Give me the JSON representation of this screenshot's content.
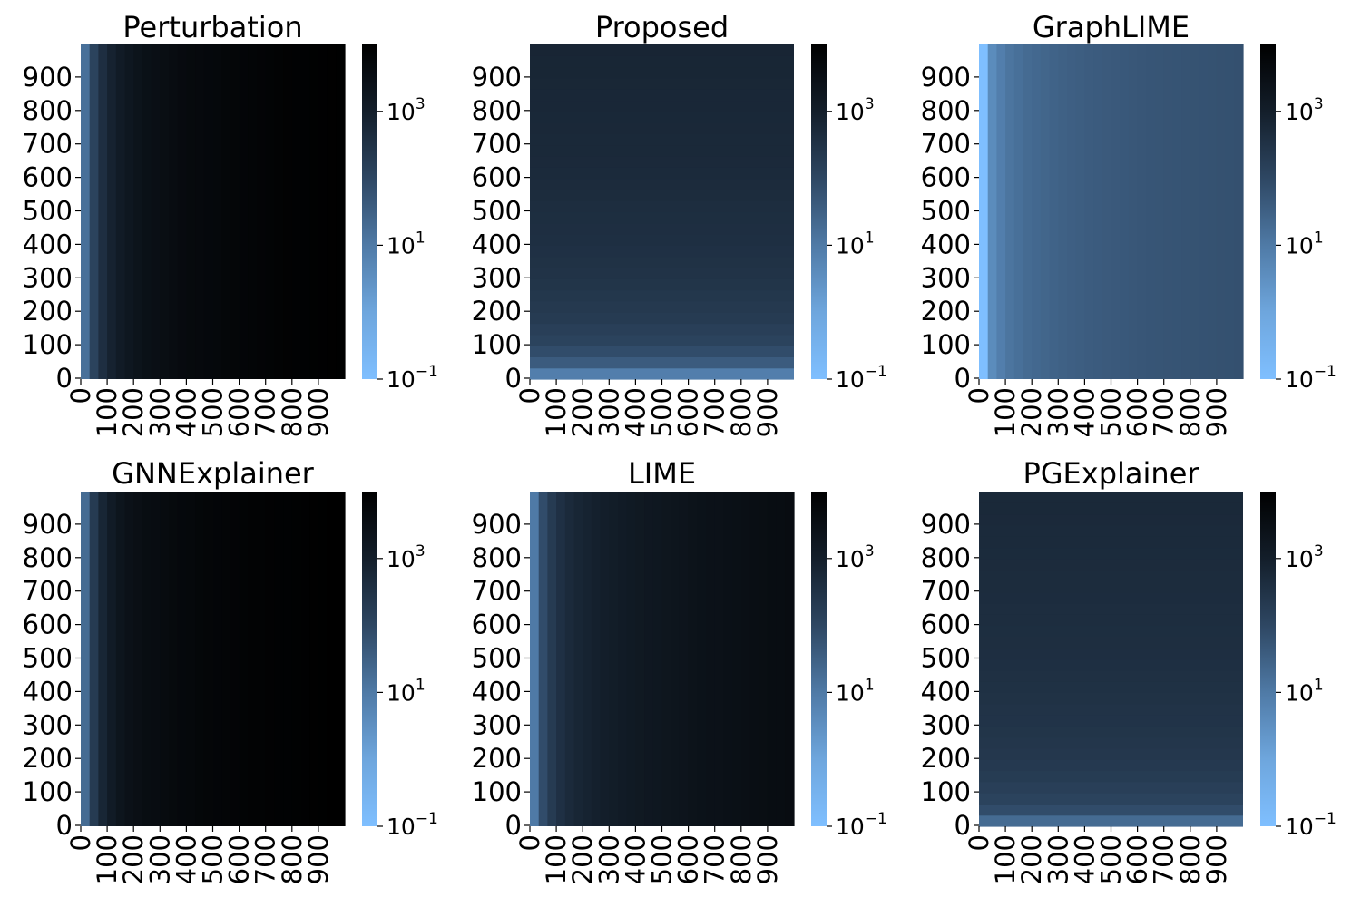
{
  "colors": {
    "low": "#7fbfff",
    "high": "#000000"
  },
  "chart_data": [
    {
      "type": "heatmap",
      "title": "Perturbation",
      "pattern": "columns",
      "vmin_exp": -1,
      "vmax_exp": 4,
      "x_ticks": [
        "0",
        "100",
        "200",
        "300",
        "400",
        "500",
        "600",
        "700",
        "800",
        "900"
      ],
      "y_ticks": [
        "0",
        "100",
        "200",
        "300",
        "400",
        "500",
        "600",
        "700",
        "800",
        "900"
      ],
      "colorbar_ticks": [
        {
          "base": "10",
          "exp": "−1",
          "value_exp": -1
        },
        {
          "base": "10",
          "exp": "1",
          "value_exp": 1
        },
        {
          "base": "10",
          "exp": "3",
          "value_exp": 3
        }
      ],
      "column_log_values": [
        1.2,
        2.1,
        2.6,
        2.9,
        3.1,
        3.25,
        3.35,
        3.45,
        3.5,
        3.55,
        3.6,
        3.65,
        3.68,
        3.7,
        3.72,
        3.75,
        3.78,
        3.8,
        3.82,
        3.84,
        3.86,
        3.88,
        3.9,
        3.92,
        3.93,
        3.94,
        3.95,
        3.96,
        3.97,
        3.98
      ]
    },
    {
      "type": "heatmap",
      "title": "Proposed",
      "pattern": "rows",
      "vmin_exp": -1,
      "vmax_exp": 4,
      "x_ticks": [
        "0",
        "100",
        "200",
        "300",
        "400",
        "500",
        "600",
        "700",
        "800",
        "900"
      ],
      "y_ticks": [
        "0",
        "100",
        "200",
        "300",
        "400",
        "500",
        "600",
        "700",
        "800",
        "900"
      ],
      "colorbar_ticks": [
        {
          "base": "10",
          "exp": "−1",
          "value_exp": -1
        },
        {
          "base": "10",
          "exp": "1",
          "value_exp": 1
        },
        {
          "base": "10",
          "exp": "3",
          "value_exp": 3
        }
      ],
      "row_log_values": [
        0.9,
        1.6,
        1.9,
        2.1,
        2.2,
        2.3,
        2.35,
        2.4,
        2.45,
        2.5,
        2.52,
        2.55,
        2.58,
        2.6,
        2.62,
        2.64,
        2.66,
        2.68,
        2.7,
        2.72,
        2.73,
        2.74,
        2.75,
        2.76,
        2.77,
        2.78,
        2.79,
        2.8,
        2.81,
        2.82
      ]
    },
    {
      "type": "heatmap",
      "title": "GraphLIME",
      "pattern": "columns",
      "vmin_exp": -1,
      "vmax_exp": 4,
      "x_ticks": [
        "0",
        "100",
        "200",
        "300",
        "400",
        "500",
        "600",
        "700",
        "800",
        "900"
      ],
      "y_ticks": [
        "0",
        "100",
        "200",
        "300",
        "400",
        "500",
        "600",
        "700",
        "800",
        "900"
      ],
      "colorbar_ticks": [
        {
          "base": "10",
          "exp": "−1",
          "value_exp": -1
        },
        {
          "base": "10",
          "exp": "1",
          "value_exp": 1
        },
        {
          "base": "10",
          "exp": "3",
          "value_exp": 3
        }
      ],
      "column_log_values": [
        -1.0,
        0.6,
        0.9,
        1.1,
        1.2,
        1.3,
        1.35,
        1.4,
        1.45,
        1.5,
        1.52,
        1.55,
        1.58,
        1.6,
        1.62,
        1.64,
        1.66,
        1.68,
        1.7,
        1.72,
        1.73,
        1.74,
        1.75,
        1.76,
        1.77,
        1.78,
        1.79,
        1.8,
        1.81,
        1.82
      ]
    },
    {
      "type": "heatmap",
      "title": "GNNExplainer",
      "pattern": "columns",
      "vmin_exp": -1,
      "vmax_exp": 4,
      "x_ticks": [
        "0",
        "100",
        "200",
        "300",
        "400",
        "500",
        "600",
        "700",
        "800",
        "900"
      ],
      "y_ticks": [
        "0",
        "100",
        "200",
        "300",
        "400",
        "500",
        "600",
        "700",
        "800",
        "900"
      ],
      "colorbar_ticks": [
        {
          "base": "10",
          "exp": "−1",
          "value_exp": -1
        },
        {
          "base": "10",
          "exp": "1",
          "value_exp": 1
        },
        {
          "base": "10",
          "exp": "3",
          "value_exp": 3
        }
      ],
      "column_log_values": [
        1.3,
        2.3,
        2.8,
        3.1,
        3.3,
        3.42,
        3.5,
        3.56,
        3.6,
        3.64,
        3.68,
        3.72,
        3.75,
        3.78,
        3.8,
        3.82,
        3.84,
        3.86,
        3.88,
        3.9,
        3.91,
        3.92,
        3.93,
        3.94,
        3.95,
        3.96,
        3.97,
        3.98,
        3.99,
        4.0
      ]
    },
    {
      "type": "heatmap",
      "title": "LIME",
      "pattern": "columns",
      "vmin_exp": -1,
      "vmax_exp": 4,
      "x_ticks": [
        "0",
        "100",
        "200",
        "300",
        "400",
        "500",
        "600",
        "700",
        "800",
        "900"
      ],
      "y_ticks": [
        "0",
        "100",
        "200",
        "300",
        "400",
        "500",
        "600",
        "700",
        "800",
        "900"
      ],
      "colorbar_ticks": [
        {
          "base": "10",
          "exp": "−1",
          "value_exp": -1
        },
        {
          "base": "10",
          "exp": "1",
          "value_exp": 1
        },
        {
          "base": "10",
          "exp": "3",
          "value_exp": 3
        }
      ],
      "column_log_values": [
        1.0,
        1.9,
        2.3,
        2.55,
        2.7,
        2.8,
        2.88,
        2.95,
        3.0,
        3.05,
        3.1,
        3.14,
        3.18,
        3.22,
        3.25,
        3.28,
        3.31,
        3.34,
        3.37,
        3.4,
        3.42,
        3.44,
        3.46,
        3.48,
        3.5,
        3.52,
        3.54,
        3.56,
        3.58,
        3.6
      ]
    },
    {
      "type": "heatmap",
      "title": "PGExplainer",
      "pattern": "rows",
      "vmin_exp": -1,
      "vmax_exp": 4,
      "x_ticks": [
        "0",
        "100",
        "200",
        "300",
        "400",
        "500",
        "600",
        "700",
        "800",
        "900"
      ],
      "y_ticks": [
        "0",
        "100",
        "200",
        "300",
        "400",
        "500",
        "600",
        "700",
        "800",
        "900"
      ],
      "colorbar_ticks": [
        {
          "base": "10",
          "exp": "−1",
          "value_exp": -1
        },
        {
          "base": "10",
          "exp": "1",
          "value_exp": 1
        },
        {
          "base": "10",
          "exp": "3",
          "value_exp": 3
        }
      ],
      "row_log_values": [
        1.3,
        1.9,
        2.1,
        2.2,
        2.28,
        2.34,
        2.38,
        2.42,
        2.45,
        2.48,
        2.5,
        2.52,
        2.54,
        2.56,
        2.58,
        2.6,
        2.61,
        2.62,
        2.63,
        2.64,
        2.65,
        2.66,
        2.67,
        2.68,
        2.69,
        2.7,
        2.71,
        2.72,
        2.73,
        2.74
      ]
    }
  ]
}
